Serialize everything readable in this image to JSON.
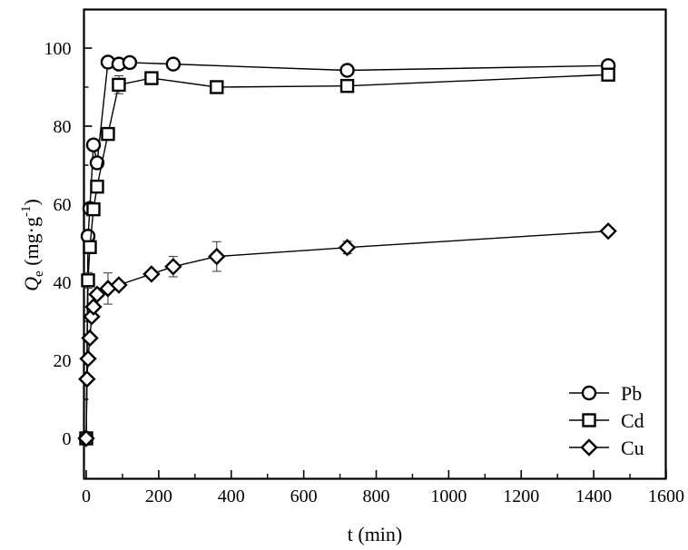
{
  "chart_data": {
    "type": "line",
    "title": "",
    "xlabel": "t (min)",
    "ylabel_main": "Q",
    "ylabel_sub": "e",
    "ylabel_units": "(mg·g",
    "ylabel_units_sup": "-1",
    "ylabel_units_close": ")",
    "xlim": [
      0,
      1600
    ],
    "ylim": [
      -10,
      110
    ],
    "xticks": [
      0,
      200,
      400,
      600,
      800,
      1000,
      1200,
      1400,
      1600
    ],
    "xticks_minor": [
      100,
      300,
      500,
      700,
      900,
      1100,
      1300,
      1500
    ],
    "yticks": [
      0,
      20,
      40,
      60,
      80,
      100
    ],
    "yticks_minor": [
      10,
      30,
      50,
      70,
      90
    ],
    "grid": false,
    "legend_position": "lower right",
    "series": [
      {
        "name": "Pb",
        "marker": "circle",
        "x": [
          0,
          5,
          10,
          20,
          30,
          60,
          90,
          120,
          240,
          720,
          1440
        ],
        "y": [
          0,
          51.8,
          58.9,
          75.2,
          70.6,
          96.4,
          95.9,
          96.3,
          95.9,
          94.3,
          95.5
        ],
        "err": [
          0.5,
          1.2,
          1.0,
          1.2,
          1.2,
          0.8,
          0.8,
          0.6,
          0.8,
          0.6,
          0.8
        ]
      },
      {
        "name": "Cd",
        "marker": "square",
        "x": [
          0,
          5,
          10,
          20,
          30,
          60,
          90,
          180,
          360,
          720,
          1440
        ],
        "y": [
          0,
          40.5,
          49.0,
          58.7,
          64.5,
          78.0,
          90.6,
          92.3,
          90.0,
          90.3,
          93.2
        ],
        "err": [
          0.5,
          2.0,
          1.5,
          1.5,
          1.5,
          1.0,
          2.3,
          0.8,
          0.8,
          0.8,
          0.8
        ]
      },
      {
        "name": "Cu",
        "marker": "diamond",
        "x": [
          0,
          2,
          5,
          10,
          15,
          20,
          30,
          60,
          90,
          180,
          240,
          360,
          720,
          1440
        ],
        "y": [
          0,
          15.2,
          20.4,
          25.7,
          31.2,
          33.7,
          36.9,
          38.4,
          39.3,
          42.1,
          44.0,
          46.6,
          48.9,
          53.1
        ],
        "err": [
          0.5,
          1.0,
          1.0,
          1.0,
          1.0,
          1.0,
          1.0,
          4.0,
          1.0,
          1.0,
          2.6,
          3.8,
          1.6,
          0.6
        ]
      }
    ]
  }
}
